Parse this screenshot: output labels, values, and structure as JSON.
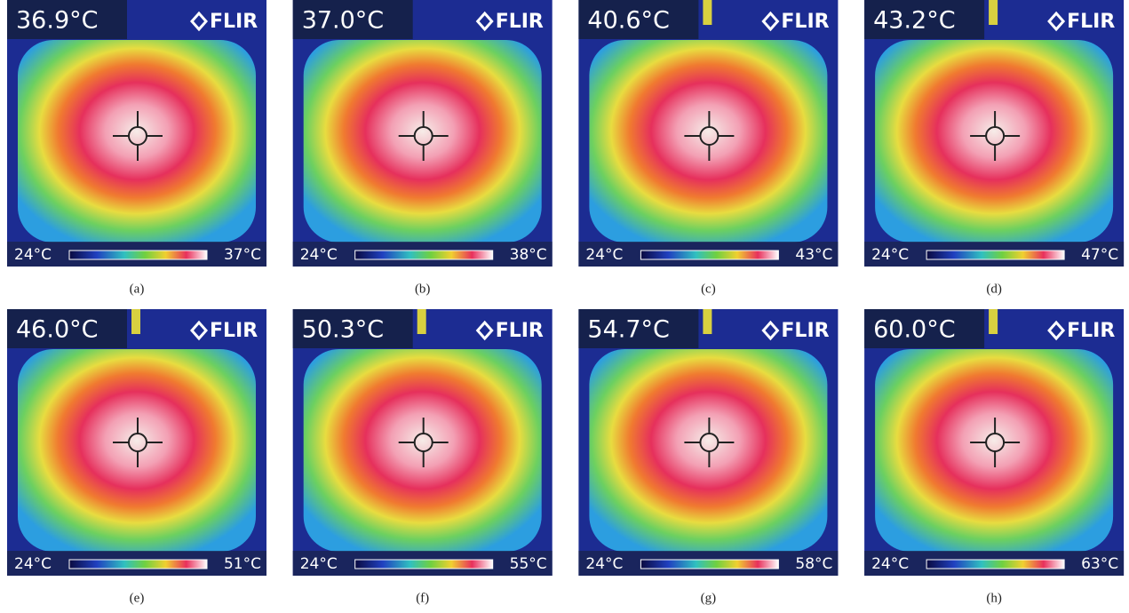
{
  "panels": [
    {
      "spot": "36.9°C",
      "brand": "FLIR",
      "scale_min": "24°C",
      "scale_max": "37°C",
      "caption": "(a)"
    },
    {
      "spot": "37.0°C",
      "brand": "FLIR",
      "scale_min": "24°C",
      "scale_max": "38°C",
      "caption": "(b)"
    },
    {
      "spot": "40.6°C",
      "brand": "FLIR",
      "scale_min": "24°C",
      "scale_max": "43°C",
      "caption": "(c)"
    },
    {
      "spot": "43.2°C",
      "brand": "FLIR",
      "scale_min": "24°C",
      "scale_max": "47°C",
      "caption": "(d)"
    },
    {
      "spot": "46.0°C",
      "brand": "FLIR",
      "scale_min": "24°C",
      "scale_max": "51°C",
      "caption": "(e)"
    },
    {
      "spot": "50.3°C",
      "brand": "FLIR",
      "scale_min": "24°C",
      "scale_max": "55°C",
      "caption": "(f)"
    },
    {
      "spot": "54.7°C",
      "brand": "FLIR",
      "scale_min": "24°C",
      "scale_max": "58°C",
      "caption": "(g)"
    },
    {
      "spot": "60.0°C",
      "brand": "FLIR",
      "scale_min": "24°C",
      "scale_max": "63°C",
      "caption": "(h)"
    }
  ]
}
